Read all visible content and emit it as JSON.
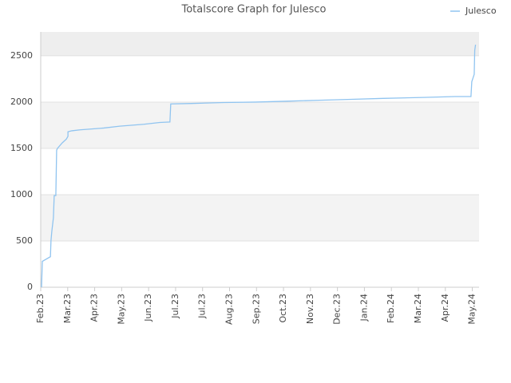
{
  "chart_data": {
    "type": "line",
    "title": "Totalscore Graph for Julesco",
    "x": [
      0.03,
      0.06,
      0.36,
      0.38,
      0.41,
      0.47,
      0.5,
      0.56,
      0.59,
      0.62,
      0.8,
      0.95,
      1.01,
      1.01,
      1.15,
      1.45,
      2.34,
      2.93,
      3.82,
      4.41,
      4.79,
      4.82,
      5.59,
      6.78,
      7.96,
      9.14,
      10.33,
      11.51,
      12.69,
      14.17,
      15.36,
      15.95,
      15.98,
      16.07,
      16.09,
      16.12
    ],
    "series": [
      {
        "name": "Julesco",
        "color": "#90c4f0",
        "values": [
          0,
          280,
          330,
          500,
          600,
          750,
          990,
          990,
          1480,
          1500,
          1560,
          1600,
          1630,
          1680,
          1690,
          1700,
          1720,
          1740,
          1760,
          1780,
          1785,
          1980,
          1985,
          1995,
          2000,
          2010,
          2020,
          2030,
          2040,
          2050,
          2060,
          2060,
          2220,
          2300,
          2560,
          2620
        ]
      }
    ],
    "xlim": [
      0,
      16.25
    ],
    "xticks": [
      {
        "value": 0,
        "label": "Feb.23"
      },
      {
        "value": 1,
        "label": "Mar.23"
      },
      {
        "value": 2,
        "label": "Apr.23"
      },
      {
        "value": 3,
        "label": "May.23"
      },
      {
        "value": 4,
        "label": "Jun.23"
      },
      {
        "value": 5,
        "label": "Jul.23"
      },
      {
        "value": 6,
        "label": "Jul.23"
      },
      {
        "value": 7,
        "label": "Aug.23"
      },
      {
        "value": 8,
        "label": "Sep.23"
      },
      {
        "value": 9,
        "label": "Oct.23"
      },
      {
        "value": 10,
        "label": "Nov.23"
      },
      {
        "value": 11,
        "label": "Dec.23"
      },
      {
        "value": 12,
        "label": "Jan.24"
      },
      {
        "value": 13,
        "label": "Feb.24"
      },
      {
        "value": 14,
        "label": "Mar.24"
      },
      {
        "value": 15,
        "label": "Apr.24"
      },
      {
        "value": 16,
        "label": "May.24"
      }
    ],
    "ylim": [
      0,
      2758
    ],
    "yticks": [
      0,
      500,
      1000,
      1500,
      2000,
      2500
    ],
    "grid": true,
    "legend": "top-right"
  }
}
